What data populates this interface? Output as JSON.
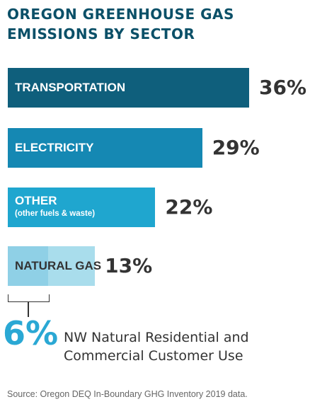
{
  "title": {
    "line1": "OREGON GREENHOUSE GAS",
    "line2": "EMISSIONS BY SECTOR"
  },
  "chart_data": {
    "type": "bar",
    "orientation": "horizontal",
    "unit": "%",
    "categories": [
      "TRANSPORTATION",
      "ELECTRICITY",
      "OTHER",
      "NATURAL GAS"
    ],
    "sublabels": [
      "",
      "",
      "(other fuels & waste)",
      ""
    ],
    "values": [
      36,
      29,
      22,
      13
    ],
    "value_labels": [
      "36%",
      "29%",
      "22%",
      "13%"
    ],
    "colors": [
      "#0f5f7c",
      "#1588b3",
      "#1fa6cf",
      "#a9ddec"
    ],
    "natural_gas_highlight": {
      "value": 6,
      "label": "6%",
      "color": "#8fd0e6",
      "description_line1": "NW Natural Residential and",
      "description_line2": "Commercial Customer Use"
    },
    "legend": "none",
    "grid": false
  },
  "source": "Source: Oregon DEQ In-Boundary GHG Inventory 2019 data."
}
